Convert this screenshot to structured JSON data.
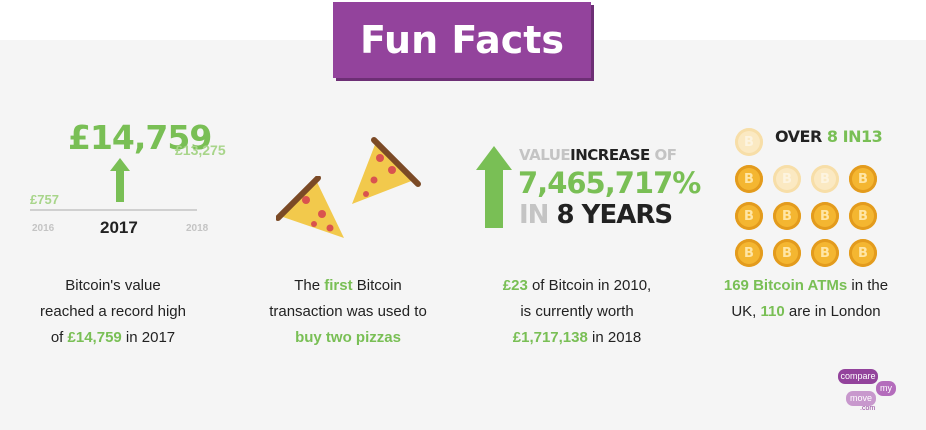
{
  "title": "Fun Facts",
  "fact1": {
    "value_2017": "£14,759",
    "value_2018": "£13,275",
    "value_2016": "£757",
    "year_2016": "2016",
    "year_2017": "2017",
    "year_2018": "2018",
    "caption_line1": "Bitcoin's value",
    "caption_line2": "reached a record high",
    "caption_of": "of ",
    "caption_value": "£14,759",
    "caption_tail": " in 2017"
  },
  "fact2": {
    "caption_the": "The ",
    "caption_first": "first",
    "caption_bitcoin": " Bitcoin",
    "caption_line2": "transaction was used to",
    "caption_line3": "buy two pizzas"
  },
  "fact3": {
    "value_word": "VALUE",
    "increase_word": "INCREASE",
    "of_word": "OF",
    "percent": "7,465,717%",
    "in_word": "IN",
    "years": "8 YEARS",
    "caption_amount": "£23",
    "caption_line1_tail": " of Bitcoin in 2010,",
    "caption_line2": "is currently worth",
    "caption_worth": "£1,717,138",
    "caption_line3_tail": " in 2018"
  },
  "fact4": {
    "over_word": "OVER",
    "eight": "8",
    "in_word": "IN",
    "thirteen": "13",
    "coin_symbol": "B",
    "coin_filled": 9,
    "coin_total": 13,
    "caption_atms": "169 Bitcoin ATMs",
    "caption_line1_tail": " in the",
    "caption_uk": "UK, ",
    "caption_london_count": "110",
    "caption_line2_tail": " are in London"
  },
  "logo": {
    "word1": "compare",
    "word2": "my",
    "word3": "move",
    "word4": ".com"
  },
  "colors": {
    "purple": "#93439c",
    "green": "#79bf55",
    "light_green": "#a8d58a",
    "coin_gold": "#f4b631",
    "coin_faded": "#fbe9c2"
  }
}
